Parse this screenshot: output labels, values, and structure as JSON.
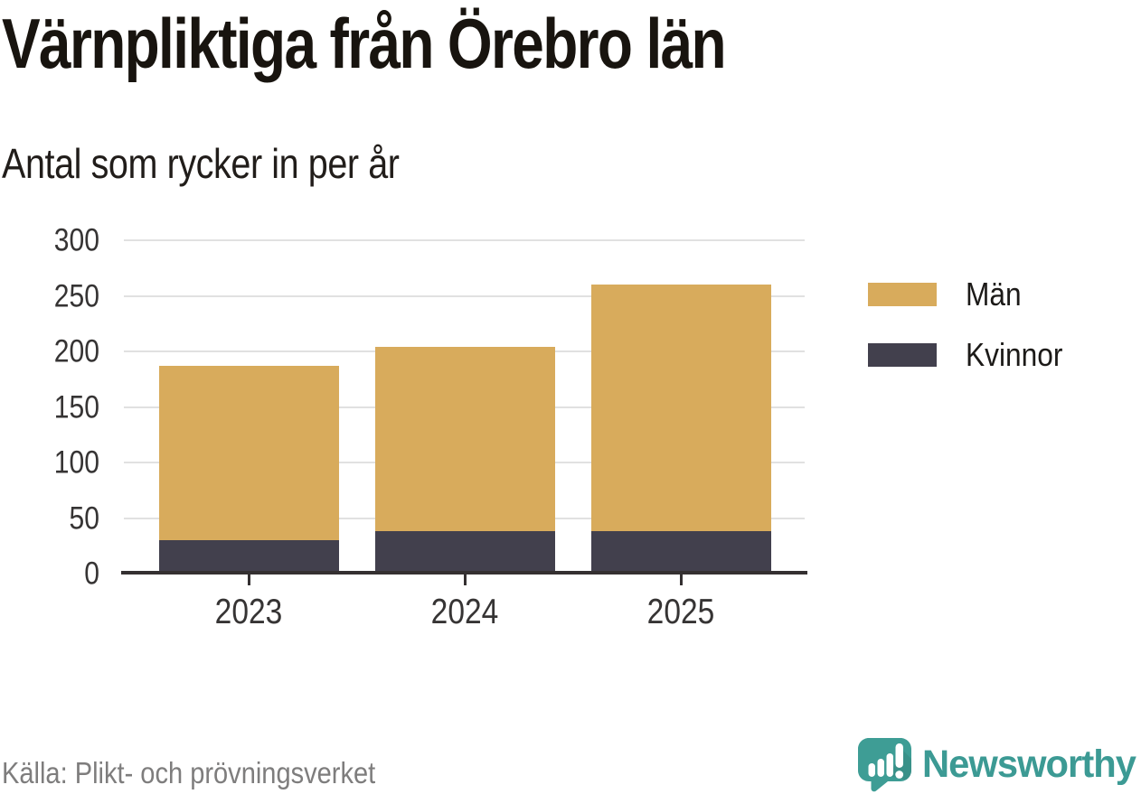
{
  "chart_data": {
    "type": "bar",
    "stacked": true,
    "title": "Värnpliktiga från Örebro län",
    "subtitle": "Antal som rycker in per år",
    "categories": [
      "2023",
      "2024",
      "2025"
    ],
    "series": [
      {
        "name": "Kvinnor",
        "color": "#42404d",
        "values": [
          30,
          38,
          38
        ]
      },
      {
        "name": "Män",
        "color": "#d8ab5c",
        "values": [
          157,
          166,
          222
        ]
      }
    ],
    "totals": [
      187,
      204,
      260
    ],
    "xlabel": "",
    "ylabel": "",
    "ylim": [
      0,
      300
    ],
    "yticks": [
      0,
      50,
      100,
      150,
      200,
      250,
      300
    ],
    "grid": "horizontal",
    "legend_position": "right"
  },
  "legend": {
    "items": [
      {
        "label": "Män",
        "color": "#d8ab5c"
      },
      {
        "label": "Kvinnor",
        "color": "#42404d"
      }
    ]
  },
  "footer": {
    "source": "Källa: Plikt- och prövningsverket",
    "brand": "Newsworthy",
    "brand_icon": "speech-bubble-bar-chart-icon"
  },
  "colors": {
    "men": "#d8ab5c",
    "women": "#42404d",
    "axis": "#343031",
    "gridline": "#e1e1e1",
    "brand_teal": "#3c9a94",
    "source_gray": "#7e7d7d"
  }
}
